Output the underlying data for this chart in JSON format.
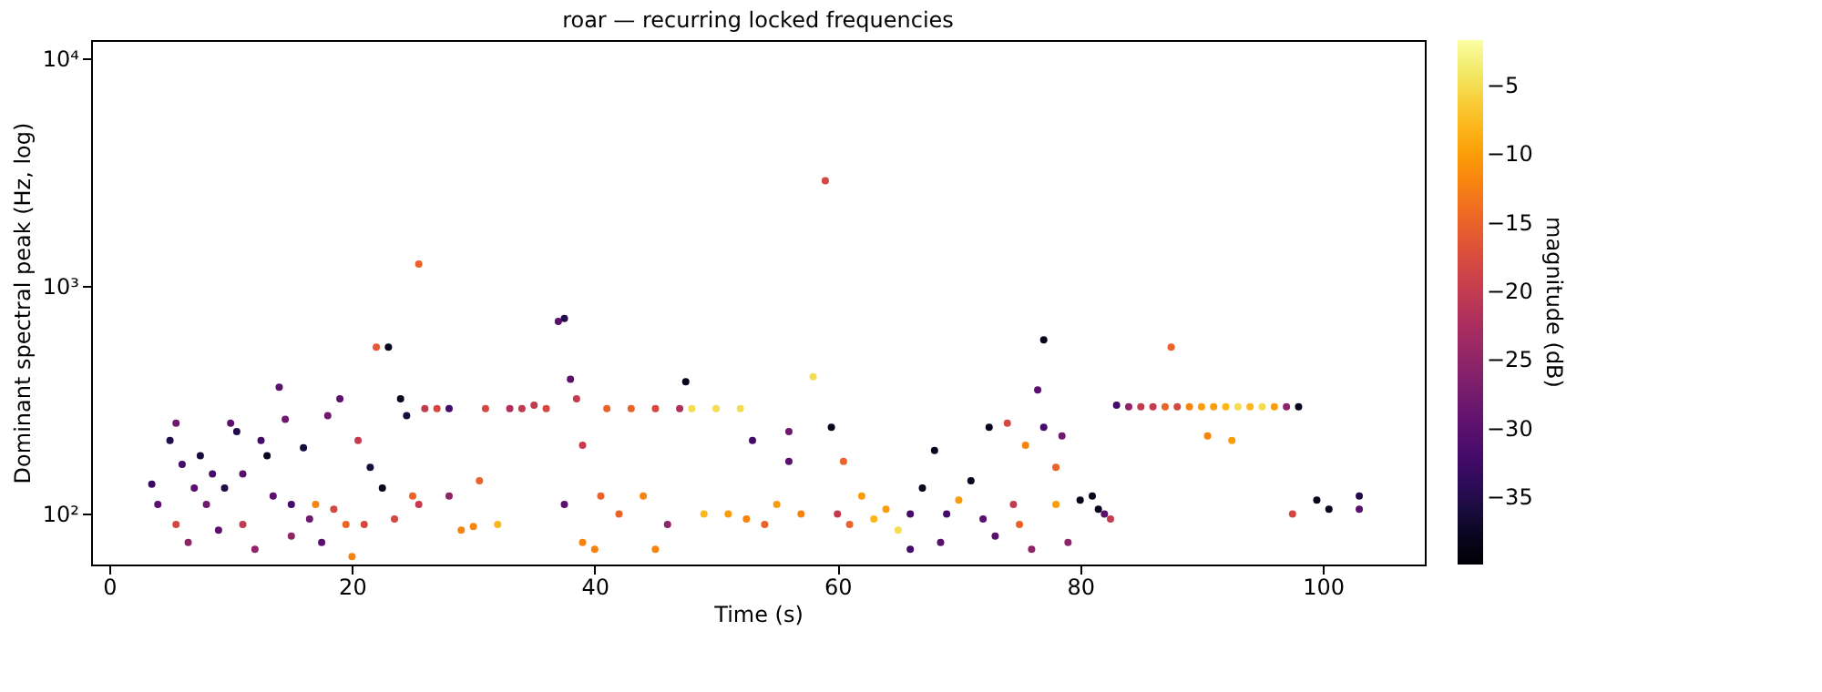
{
  "chart_data": {
    "type": "scatter",
    "title": "roar — recurring locked frequencies",
    "xlabel": "Time (s)",
    "ylabel": "Dominant spectral peak (Hz, log)",
    "clabel": "magnitude (dB)",
    "x": [
      3.5,
      4,
      5,
      5.5,
      5.5,
      6,
      6.5,
      7,
      7.5,
      8,
      8.5,
      9,
      9.5,
      10,
      10.5,
      11,
      11,
      12,
      12.5,
      13,
      13.5,
      14,
      14.5,
      15,
      15,
      16,
      16.5,
      17,
      17.5,
      18,
      18.5,
      19,
      19.5,
      20,
      20.5,
      21,
      21.5,
      22,
      22.5,
      23,
      23.5,
      24,
      24.5,
      25,
      25.5,
      25.5,
      26,
      27,
      28,
      28,
      29,
      30,
      30.5,
      31,
      32,
      33,
      34,
      35,
      36,
      37,
      37.5,
      37.5,
      38,
      38.5,
      39,
      39,
      40,
      40.5,
      41,
      42,
      43,
      44,
      45,
      45,
      46,
      47,
      47.5,
      48,
      49,
      50,
      51,
      52,
      52.5,
      53,
      54,
      55,
      56,
      56,
      57,
      58,
      59,
      59.5,
      60,
      60.5,
      61,
      62,
      63,
      64,
      65,
      66,
      66,
      67,
      68,
      68.5,
      69,
      70,
      71,
      72,
      72.5,
      73,
      74,
      74.5,
      75,
      75.5,
      76,
      76.5,
      77,
      77,
      78,
      78,
      78.5,
      79,
      80,
      81,
      81.5,
      82,
      82.5,
      83,
      84,
      85,
      86,
      87,
      87.5,
      88,
      89,
      90,
      90.5,
      91,
      92,
      92.5,
      93,
      94,
      95,
      96,
      97,
      97.5,
      98,
      99.5,
      100.5,
      103,
      103
    ],
    "values": [
      135,
      110,
      210,
      250,
      90,
      165,
      75,
      130,
      180,
      110,
      150,
      85,
      130,
      250,
      230,
      90,
      150,
      70,
      210,
      180,
      120,
      360,
      260,
      110,
      80,
      195,
      95,
      110,
      75,
      270,
      105,
      320,
      90,
      65,
      210,
      90,
      160,
      540,
      130,
      540,
      95,
      320,
      270,
      120,
      1250,
      110,
      290,
      290,
      290,
      120,
      85,
      88,
      140,
      290,
      90,
      290,
      290,
      300,
      290,
      700,
      720,
      110,
      390,
      320,
      75,
      200,
      70,
      120,
      290,
      100,
      290,
      120,
      290,
      70,
      90,
      290,
      380,
      290,
      100,
      290,
      100,
      290,
      95,
      210,
      90,
      110,
      170,
      230,
      100,
      400,
      2900,
      240,
      100,
      170,
      90,
      120,
      95,
      105,
      85,
      100,
      70,
      130,
      190,
      75,
      100,
      115,
      140,
      95,
      240,
      80,
      250,
      110,
      90,
      200,
      70,
      350,
      580,
      240,
      160,
      110,
      220,
      75,
      115,
      120,
      105,
      100,
      95,
      300,
      295,
      295,
      295,
      295,
      540,
      295,
      295,
      295,
      220,
      295,
      295,
      210,
      295,
      295,
      295,
      295,
      295,
      100,
      295,
      115,
      105,
      120,
      105
    ],
    "cvalues": [
      -33,
      -30,
      -35,
      -28,
      -18,
      -32,
      -25,
      -30,
      -36,
      -28,
      -32,
      -30,
      -35,
      -30,
      -35,
      -20,
      -30,
      -25,
      -32,
      -38,
      -30,
      -30,
      -28,
      -32,
      -25,
      -36,
      -28,
      -12,
      -30,
      -28,
      -18,
      -30,
      -15,
      -12,
      -20,
      -18,
      -36,
      -16,
      -38,
      -38,
      -18,
      -38,
      -36,
      -15,
      -15,
      -20,
      -20,
      -18,
      -32,
      -25,
      -12,
      -12,
      -15,
      -18,
      -8,
      -22,
      -20,
      -20,
      -18,
      -30,
      -35,
      -30,
      -30,
      -20,
      -12,
      -20,
      -12,
      -15,
      -15,
      -15,
      -15,
      -12,
      -18,
      -12,
      -25,
      -22,
      -38,
      -5,
      -8,
      -5,
      -10,
      -5,
      -12,
      -32,
      -15,
      -10,
      -30,
      -28,
      -12,
      -5,
      -18,
      -38,
      -20,
      -15,
      -15,
      -10,
      -8,
      -10,
      -5,
      -32,
      -32,
      -38,
      -38,
      -30,
      -32,
      -10,
      -38,
      -30,
      -38,
      -30,
      -18,
      -20,
      -15,
      -12,
      -25,
      -30,
      -38,
      -32,
      -15,
      -10,
      -28,
      -25,
      -38,
      -38,
      -38,
      -30,
      -20,
      -32,
      -25,
      -20,
      -20,
      -15,
      -15,
      -18,
      -12,
      -10,
      -12,
      -10,
      -8,
      -10,
      -5,
      -8,
      -5,
      -10,
      -25,
      -18,
      -38,
      -38,
      -38,
      -35,
      -30
    ],
    "xlim": [
      -1.5,
      108.4
    ],
    "xticks": [
      0,
      20,
      40,
      60,
      80,
      100
    ],
    "log": true,
    "ylim": [
      60,
      12000
    ],
    "yticks": [
      {
        "value": 100,
        "label": "10²"
      },
      {
        "value": 1000,
        "label": "10³"
      },
      {
        "value": 10000,
        "label": "10⁴"
      }
    ],
    "clim": [
      -39.9,
      -1.7
    ],
    "cticks": [
      -35,
      -30,
      -25,
      -20,
      -15,
      -10,
      -5
    ],
    "marker": "circle",
    "grid": false
  }
}
